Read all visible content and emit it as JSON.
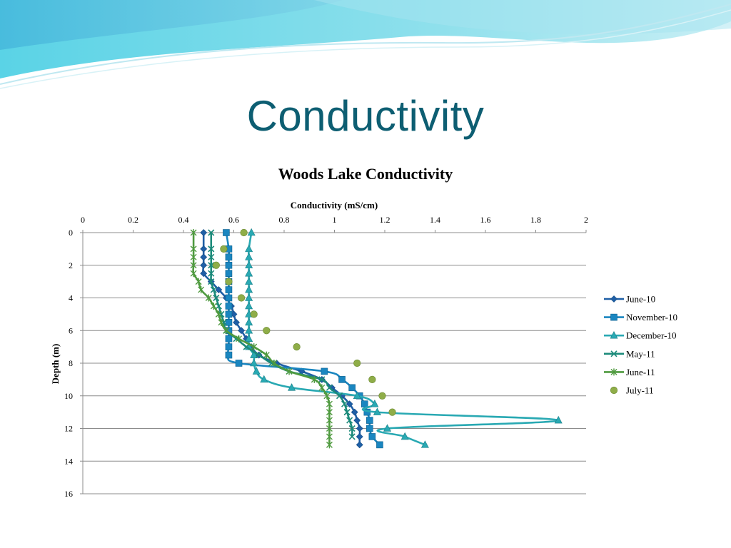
{
  "slide": {
    "title": "Conductivity"
  },
  "chart_data": {
    "type": "scatter",
    "title": "Woods Lake Conductivity",
    "xlabel": "Conductivity (mS/cm)",
    "ylabel": "Depth (m)",
    "xlim": [
      0,
      2
    ],
    "ylim": [
      0,
      16
    ],
    "x_axis_position": "top",
    "y_axis_inverted": true,
    "x_ticks": [
      0,
      0.2,
      0.4,
      0.6,
      0.8,
      1,
      1.2,
      1.4,
      1.6,
      1.8,
      2
    ],
    "y_ticks": [
      0,
      2,
      4,
      6,
      8,
      10,
      12,
      14,
      16
    ],
    "grid": "horizontal",
    "legend": "right",
    "series": [
      {
        "name": "June-10",
        "color": "#1f5fa6",
        "marker": "diamond",
        "line": true,
        "points": [
          [
            0.48,
            0
          ],
          [
            0.48,
            1
          ],
          [
            0.48,
            1.5
          ],
          [
            0.48,
            2
          ],
          [
            0.48,
            2.5
          ],
          [
            0.51,
            3
          ],
          [
            0.54,
            3.5
          ],
          [
            0.57,
            4
          ],
          [
            0.59,
            4.5
          ],
          [
            0.6,
            5
          ],
          [
            0.61,
            5.5
          ],
          [
            0.63,
            6
          ],
          [
            0.65,
            6.5
          ],
          [
            0.67,
            7
          ],
          [
            0.7,
            7.5
          ],
          [
            0.77,
            8
          ],
          [
            0.87,
            8.5
          ],
          [
            0.95,
            9
          ],
          [
            0.99,
            9.5
          ],
          [
            1.03,
            10
          ],
          [
            1.06,
            10.5
          ],
          [
            1.08,
            11
          ],
          [
            1.09,
            11.5
          ],
          [
            1.1,
            12
          ],
          [
            1.1,
            12.5
          ],
          [
            1.1,
            13
          ]
        ]
      },
      {
        "name": "November-10",
        "color": "#1a86c0",
        "marker": "square",
        "line": true,
        "points": [
          [
            0.57,
            0
          ],
          [
            0.58,
            1
          ],
          [
            0.58,
            1.5
          ],
          [
            0.58,
            2
          ],
          [
            0.58,
            2.5
          ],
          [
            0.58,
            3
          ],
          [
            0.58,
            3.5
          ],
          [
            0.58,
            4
          ],
          [
            0.58,
            4.5
          ],
          [
            0.58,
            5
          ],
          [
            0.58,
            5.5
          ],
          [
            0.58,
            6
          ],
          [
            0.58,
            6.5
          ],
          [
            0.58,
            7
          ],
          [
            0.58,
            7.5
          ],
          [
            0.62,
            8
          ],
          [
            0.96,
            8.5
          ],
          [
            1.03,
            9
          ],
          [
            1.07,
            9.5
          ],
          [
            1.1,
            10
          ],
          [
            1.12,
            10.5
          ],
          [
            1.13,
            11
          ],
          [
            1.14,
            11.5
          ],
          [
            1.14,
            12
          ],
          [
            1.15,
            12.5
          ],
          [
            1.18,
            13
          ]
        ]
      },
      {
        "name": "December-10",
        "color": "#29a9b3",
        "marker": "triangle",
        "line": true,
        "points": [
          [
            0.67,
            0
          ],
          [
            0.66,
            1
          ],
          [
            0.66,
            1.5
          ],
          [
            0.66,
            2
          ],
          [
            0.66,
            2.5
          ],
          [
            0.66,
            3
          ],
          [
            0.66,
            3.5
          ],
          [
            0.66,
            4
          ],
          [
            0.66,
            4.5
          ],
          [
            0.66,
            5
          ],
          [
            0.66,
            5.5
          ],
          [
            0.66,
            6
          ],
          [
            0.66,
            6.5
          ],
          [
            0.66,
            7
          ],
          [
            0.68,
            7.5
          ],
          [
            0.68,
            8
          ],
          [
            0.69,
            8.5
          ],
          [
            0.72,
            9
          ],
          [
            0.83,
            9.5
          ],
          [
            1.09,
            10
          ],
          [
            1.16,
            10.5
          ],
          [
            1.17,
            11
          ],
          [
            1.89,
            11.5
          ],
          [
            1.21,
            12
          ],
          [
            1.28,
            12.5
          ],
          [
            1.36,
            13
          ]
        ]
      },
      {
        "name": "May-11",
        "color": "#1b8a7a",
        "marker": "x",
        "line": true,
        "points": [
          [
            0.51,
            0
          ],
          [
            0.51,
            1
          ],
          [
            0.51,
            1.5
          ],
          [
            0.51,
            2
          ],
          [
            0.51,
            2.5
          ],
          [
            0.51,
            3
          ],
          [
            0.52,
            3.5
          ],
          [
            0.53,
            4
          ],
          [
            0.54,
            4.5
          ],
          [
            0.55,
            5
          ],
          [
            0.56,
            5.5
          ],
          [
            0.57,
            6
          ],
          [
            0.61,
            6.5
          ],
          [
            0.65,
            7
          ],
          [
            0.7,
            7.5
          ],
          [
            0.75,
            8
          ],
          [
            0.82,
            8.5
          ],
          [
            0.95,
            9
          ],
          [
            0.98,
            9.5
          ],
          [
            1.02,
            10
          ],
          [
            1.04,
            10.5
          ],
          [
            1.05,
            11
          ],
          [
            1.06,
            11.5
          ],
          [
            1.07,
            12
          ],
          [
            1.07,
            12.5
          ]
        ]
      },
      {
        "name": "June-11",
        "color": "#4f9a3f",
        "marker": "star",
        "line": true,
        "points": [
          [
            0.44,
            0
          ],
          [
            0.44,
            1
          ],
          [
            0.44,
            1.5
          ],
          [
            0.44,
            2
          ],
          [
            0.44,
            2.5
          ],
          [
            0.46,
            3
          ],
          [
            0.47,
            3.5
          ],
          [
            0.5,
            4
          ],
          [
            0.52,
            4.5
          ],
          [
            0.54,
            5
          ],
          [
            0.55,
            5.5
          ],
          [
            0.57,
            6
          ],
          [
            0.62,
            6.5
          ],
          [
            0.68,
            7
          ],
          [
            0.73,
            7.5
          ],
          [
            0.76,
            8
          ],
          [
            0.82,
            8.5
          ],
          [
            0.92,
            9
          ],
          [
            0.95,
            9.5
          ],
          [
            0.97,
            10
          ],
          [
            0.98,
            10.5
          ],
          [
            0.98,
            11
          ],
          [
            0.98,
            11.5
          ],
          [
            0.98,
            12
          ],
          [
            0.98,
            12.5
          ],
          [
            0.98,
            13
          ]
        ]
      },
      {
        "name": "July-11",
        "color": "#8fad48",
        "marker": "circle",
        "line": false,
        "points": [
          [
            0.64,
            0
          ],
          [
            0.56,
            1
          ],
          [
            0.53,
            2
          ],
          [
            0.58,
            3
          ],
          [
            0.63,
            4
          ],
          [
            0.68,
            5
          ],
          [
            0.73,
            6
          ],
          [
            0.85,
            7
          ],
          [
            1.09,
            8
          ],
          [
            1.15,
            9
          ],
          [
            1.19,
            10
          ],
          [
            1.23,
            11
          ]
        ]
      }
    ]
  }
}
